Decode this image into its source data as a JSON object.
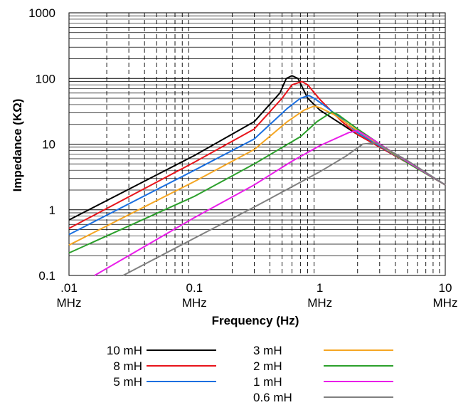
{
  "chart_data": {
    "type": "line",
    "title": "",
    "xlabel": "Frequency (Hz)",
    "ylabel": "Impedance (KΩ)",
    "x_scale": "log",
    "y_scale": "log",
    "xlim": [
      0.01,
      10
    ],
    "ylim": [
      0.1,
      1000
    ],
    "grid": true,
    "legend_position": "bottom",
    "x_ticks": [
      {
        "value": 0.01,
        "line1": ".01",
        "line2": "MHz"
      },
      {
        "value": 0.1,
        "line1": "0.1",
        "line2": "MHz"
      },
      {
        "value": 1,
        "line1": "1",
        "line2": "MHz"
      },
      {
        "value": 10,
        "line1": "10",
        "line2": "MHz"
      }
    ],
    "y_ticks": [
      {
        "value": 0.1,
        "label": "0.1"
      },
      {
        "value": 1,
        "label": "1"
      },
      {
        "value": 10,
        "label": "10"
      },
      {
        "value": 100,
        "label": "100"
      },
      {
        "value": 1000,
        "label": "1000"
      }
    ],
    "series": [
      {
        "name": "10 mH",
        "color": "#000000",
        "points": [
          [
            0.01,
            0.7
          ],
          [
            0.1,
            6.7
          ],
          [
            0.3,
            22
          ],
          [
            0.48,
            60
          ],
          [
            0.54,
            100
          ],
          [
            0.6,
            110
          ],
          [
            0.67,
            100
          ],
          [
            0.8,
            50
          ],
          [
            1,
            33
          ],
          [
            2,
            14
          ],
          [
            5,
            5.2
          ],
          [
            10,
            2.4
          ]
        ]
      },
      {
        "name": "8 mH",
        "color": "#e8141b",
        "points": [
          [
            0.01,
            0.52
          ],
          [
            0.1,
            5.3
          ],
          [
            0.3,
            17
          ],
          [
            0.5,
            50
          ],
          [
            0.6,
            80
          ],
          [
            0.72,
            90
          ],
          [
            0.8,
            80
          ],
          [
            1,
            48
          ],
          [
            1.5,
            22
          ],
          [
            2,
            14
          ],
          [
            5,
            5.2
          ],
          [
            10,
            2.4
          ]
        ]
      },
      {
        "name": "5 mH",
        "color": "#1a6fe0",
        "points": [
          [
            0.01,
            0.42
          ],
          [
            0.1,
            4
          ],
          [
            0.3,
            12
          ],
          [
            0.55,
            35
          ],
          [
            0.7,
            50
          ],
          [
            0.82,
            55
          ],
          [
            0.9,
            50
          ],
          [
            1.1,
            38
          ],
          [
            1.5,
            24
          ],
          [
            2,
            15
          ],
          [
            5,
            5.2
          ],
          [
            10,
            2.4
          ]
        ]
      },
      {
        "name": "3 mH",
        "color": "#f5a623",
        "points": [
          [
            0.01,
            0.29
          ],
          [
            0.1,
            2.7
          ],
          [
            0.3,
            8.3
          ],
          [
            0.55,
            22
          ],
          [
            0.75,
            33
          ],
          [
            0.9,
            38
          ],
          [
            1,
            36
          ],
          [
            1.3,
            28
          ],
          [
            2,
            16
          ],
          [
            5,
            5.2
          ],
          [
            10,
            2.4
          ]
        ]
      },
      {
        "name": "2 mH",
        "color": "#2ca02c",
        "points": [
          [
            0.01,
            0.22
          ],
          [
            0.1,
            1.6
          ],
          [
            0.3,
            5
          ],
          [
            0.7,
            13
          ],
          [
            0.95,
            22
          ],
          [
            1.25,
            31
          ],
          [
            1.4,
            28
          ],
          [
            2,
            17
          ],
          [
            5,
            5.2
          ],
          [
            10,
            2.4
          ]
        ]
      },
      {
        "name": "1 mH",
        "color": "#e91ee9",
        "points": [
          [
            0.016,
            0.1
          ],
          [
            0.1,
            0.76
          ],
          [
            0.3,
            2.4
          ],
          [
            0.6,
            5.5
          ],
          [
            1,
            9.5
          ],
          [
            1.7,
            15
          ],
          [
            2,
            16
          ],
          [
            2.6,
            12
          ],
          [
            5,
            5.4
          ],
          [
            10,
            2.4
          ]
        ]
      },
      {
        "name": "0.6 mH",
        "color": "#808080",
        "points": [
          [
            0.027,
            0.1
          ],
          [
            0.1,
            0.37
          ],
          [
            0.3,
            1.1
          ],
          [
            1,
            3.8
          ],
          [
            1.6,
            6.5
          ],
          [
            2.2,
            10
          ],
          [
            2.8,
            10.5
          ],
          [
            5,
            5.6
          ],
          [
            10,
            2.4
          ]
        ]
      }
    ]
  }
}
